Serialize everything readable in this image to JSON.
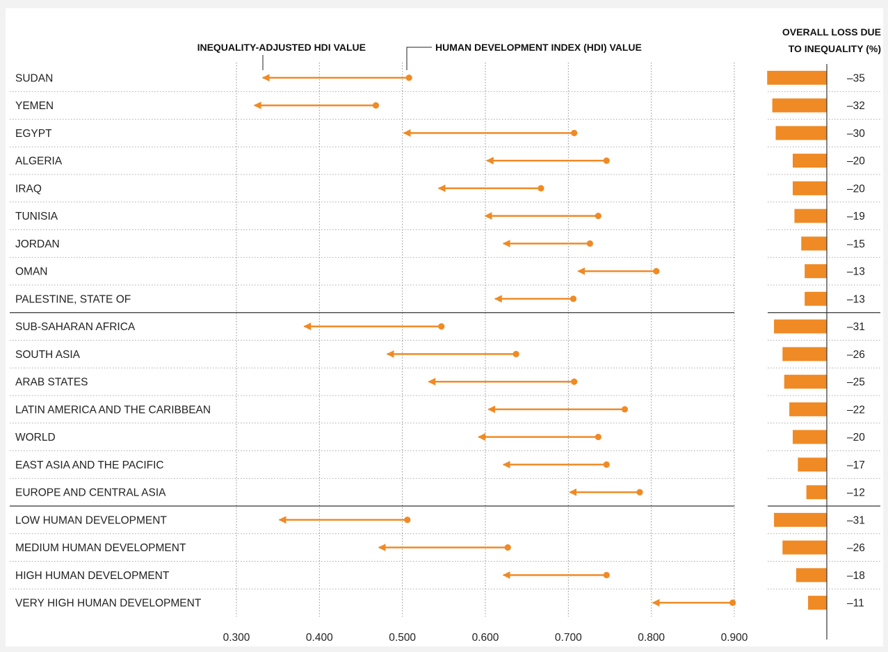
{
  "colors": {
    "accent": "#f08a24",
    "text": "#222222",
    "grid": "#8c8c8c",
    "separator": "#333333"
  },
  "chart_data": {
    "type": "dumbbell-arrow",
    "headers": {
      "ihdi": "INEQUALITY-ADJUSTED HDI VALUE",
      "hdi": "HUMAN DEVELOPMENT INDEX (HDI) VALUE",
      "loss_line1": "OVERALL LOSS DUE",
      "loss_line2": "TO INEQUALITY (%)"
    },
    "xlim": [
      0.3,
      0.9
    ],
    "x_ticks": [
      "0.300",
      "0.400",
      "0.500",
      "0.600",
      "0.700",
      "0.800",
      "0.900"
    ],
    "loss_range": [
      -35,
      0
    ],
    "separators_after_row": [
      8,
      15
    ],
    "rows": [
      {
        "label": "SUDAN",
        "hdi": 0.508,
        "ihdi": 0.33,
        "loss": -35,
        "loss_label": "–35"
      },
      {
        "label": "YEMEN",
        "hdi": 0.468,
        "ihdi": 0.32,
        "loss": -32,
        "loss_label": "–32"
      },
      {
        "label": "EGYPT",
        "hdi": 0.707,
        "ihdi": 0.5,
        "loss": -30,
        "loss_label": "–30"
      },
      {
        "label": "ALGERIA",
        "hdi": 0.746,
        "ihdi": 0.6,
        "loss": -20,
        "loss_label": "–20"
      },
      {
        "label": "IRAQ",
        "hdi": 0.667,
        "ihdi": 0.542,
        "loss": -20,
        "loss_label": "–20"
      },
      {
        "label": "TUNISIA",
        "hdi": 0.736,
        "ihdi": 0.598,
        "loss": -19,
        "loss_label": "–19"
      },
      {
        "label": "JORDAN",
        "hdi": 0.726,
        "ihdi": 0.62,
        "loss": -15,
        "loss_label": "–15"
      },
      {
        "label": "OMAN",
        "hdi": 0.806,
        "ihdi": 0.71,
        "loss": -13,
        "loss_label": "–13"
      },
      {
        "label": "PALESTINE, STATE OF",
        "hdi": 0.706,
        "ihdi": 0.61,
        "loss": -13,
        "loss_label": "–13"
      },
      {
        "label": "SUB-SAHARAN AFRICA",
        "hdi": 0.547,
        "ihdi": 0.38,
        "loss": -31,
        "loss_label": "–31"
      },
      {
        "label": "SOUTH ASIA",
        "hdi": 0.637,
        "ihdi": 0.48,
        "loss": -26,
        "loss_label": "–26"
      },
      {
        "label": "ARAB STATES",
        "hdi": 0.707,
        "ihdi": 0.53,
        "loss": -25,
        "loss_label": "–25"
      },
      {
        "label": "LATIN AMERICA AND THE CARIBBEAN",
        "hdi": 0.768,
        "ihdi": 0.602,
        "loss": -22,
        "loss_label": "–22"
      },
      {
        "label": "WORLD",
        "hdi": 0.736,
        "ihdi": 0.59,
        "loss": -20,
        "loss_label": "–20"
      },
      {
        "label": "EAST ASIA AND THE PACIFIC",
        "hdi": 0.746,
        "ihdi": 0.62,
        "loss": -17,
        "loss_label": "–17"
      },
      {
        "label": "EUROPE AND CENTRAL ASIA",
        "hdi": 0.786,
        "ihdi": 0.7,
        "loss": -12,
        "loss_label": "–12"
      },
      {
        "label": "LOW HUMAN DEVELOPMENT",
        "hdi": 0.506,
        "ihdi": 0.35,
        "loss": -31,
        "loss_label": "–31"
      },
      {
        "label": "MEDIUM HUMAN DEVELOPMENT",
        "hdi": 0.627,
        "ihdi": 0.47,
        "loss": -26,
        "loss_label": "–26"
      },
      {
        "label": "HIGH HUMAN DEVELOPMENT",
        "hdi": 0.746,
        "ihdi": 0.62,
        "loss": -18,
        "loss_label": "–18"
      },
      {
        "label": "VERY HIGH HUMAN DEVELOPMENT",
        "hdi": 0.898,
        "ihdi": 0.8,
        "loss": -11,
        "loss_label": "–11"
      }
    ]
  }
}
